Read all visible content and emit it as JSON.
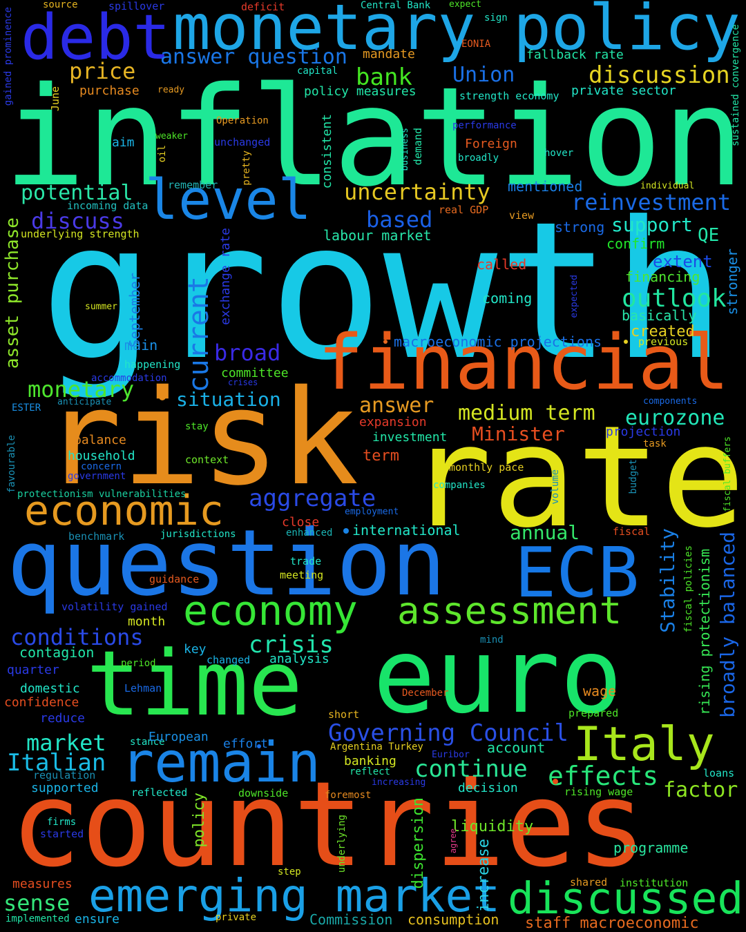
{
  "title": "",
  "background": "#000000",
  "words": [
    {
      "text": "inflation",
      "color": "#1ee896"
    },
    {
      "text": "growth",
      "color": "#17c9e6"
    },
    {
      "text": "rate",
      "color": "#e4e416"
    },
    {
      "text": "risk",
      "color": "#e68c1c"
    },
    {
      "text": "countries",
      "color": "#e64e18"
    },
    {
      "text": "question",
      "color": "#1b76e6"
    },
    {
      "text": "euro",
      "color": "#18e46a"
    },
    {
      "text": "financial",
      "color": "#e85a18"
    },
    {
      "text": "time",
      "color": "#28e650"
    },
    {
      "text": "monetary policy",
      "color": "#1ea6e6"
    },
    {
      "text": "debt",
      "color": "#2a2ae6"
    },
    {
      "text": "ECB",
      "color": "#1678e6"
    },
    {
      "text": "remain",
      "color": "#1a84e6"
    },
    {
      "text": "economic",
      "color": "#e69a20"
    },
    {
      "text": "level",
      "color": "#1a86e6"
    },
    {
      "text": "Italy",
      "color": "#a8e61c"
    },
    {
      "text": "emerging market",
      "color": "#1aa0e6"
    },
    {
      "text": "discussed",
      "color": "#18e45a"
    },
    {
      "text": "economy",
      "color": "#36e636"
    },
    {
      "text": "assessment",
      "color": "#5ee62c"
    },
    {
      "text": "Governing Council",
      "color": "#2a50e6"
    },
    {
      "text": "uncertainty",
      "color": "#e6c822"
    },
    {
      "text": "reinvestment",
      "color": "#1a6ae6"
    },
    {
      "text": "outlook",
      "color": "#22e6a0"
    },
    {
      "text": "aggregate",
      "color": "#2a4ae6"
    },
    {
      "text": "effects",
      "color": "#28e67a"
    },
    {
      "text": "continue",
      "color": "#2ae696"
    },
    {
      "text": "crisis",
      "color": "#22e6ae"
    },
    {
      "text": "conditions",
      "color": "#2a4ae6"
    },
    {
      "text": "Italian",
      "color": "#1abce6"
    },
    {
      "text": "discussion",
      "color": "#e6d422"
    },
    {
      "text": "price",
      "color": "#e6b424"
    },
    {
      "text": "bank",
      "color": "#44e622"
    },
    {
      "text": "Union",
      "color": "#1a70e6"
    },
    {
      "text": "answer question",
      "color": "#1a76e6"
    },
    {
      "text": "potential",
      "color": "#2ae6a8"
    },
    {
      "text": "discuss",
      "color": "#4a3ae6"
    },
    {
      "text": "based",
      "color": "#1a60e6"
    },
    {
      "text": "support",
      "color": "#22e6c8"
    },
    {
      "text": "broad",
      "color": "#3a2ae6"
    },
    {
      "text": "current",
      "color": "#1a78e6"
    },
    {
      "text": "monetary",
      "color": "#4ee62e"
    },
    {
      "text": "situation",
      "color": "#1ab0e6"
    },
    {
      "text": "answer",
      "color": "#e69a22"
    },
    {
      "text": "medium term",
      "color": "#d4e622"
    },
    {
      "text": "eurozone",
      "color": "#22e6b8"
    },
    {
      "text": "Minister",
      "color": "#e64e20"
    },
    {
      "text": "annual",
      "color": "#34e66a"
    },
    {
      "text": "market",
      "color": "#22e6c6"
    },
    {
      "text": "factor",
      "color": "#8ee622"
    },
    {
      "text": "asset purchase",
      "color": "#8ee62a"
    },
    {
      "text": "broadly balanced",
      "color": "#1a66e6"
    },
    {
      "text": "Stability",
      "color": "#1a80e6"
    },
    {
      "text": "rising protectionism",
      "color": "#36e654"
    },
    {
      "text": "sense",
      "color": "#34e67a"
    },
    {
      "text": "staff macroeconomic",
      "color": "#e66a20"
    },
    {
      "text": "Commission",
      "color": "#1aa8a8"
    },
    {
      "text": "consumption",
      "color": "#e6c020"
    },
    {
      "text": "liquidity",
      "color": "#6ee62a"
    },
    {
      "text": "programme",
      "color": "#2ae6a0"
    },
    {
      "text": "increase",
      "color": "#2ad4e6"
    },
    {
      "text": "dispersion",
      "color": "#3ee630"
    },
    {
      "text": "policy",
      "color": "#80e628"
    },
    {
      "text": "macroeconomic projections",
      "color": "#1a70e6"
    },
    {
      "text": "created",
      "color": "#e6d022"
    },
    {
      "text": "previous",
      "color": "#d4e622"
    },
    {
      "text": "extent",
      "color": "#1a4ae6"
    },
    {
      "text": "financing",
      "color": "#4ee630"
    },
    {
      "text": "basically",
      "color": "#28e6aa"
    },
    {
      "text": "strong",
      "color": "#1a6ae6"
    },
    {
      "text": "confirm",
      "color": "#22e62a"
    },
    {
      "text": "coming",
      "color": "#22e6c8"
    },
    {
      "text": "QE",
      "color": "#22e6aa"
    },
    {
      "text": "stronger",
      "color": "#1a90e6"
    },
    {
      "text": "mentioned",
      "color": "#1a80e6"
    },
    {
      "text": "labour market",
      "color": "#28e6aa"
    },
    {
      "text": "incoming data",
      "color": "#22c0c0"
    },
    {
      "text": "underlying strength",
      "color": "#d4e622"
    },
    {
      "text": "remember",
      "color": "#22b4b4"
    },
    {
      "text": "real GDP",
      "color": "#e66a20"
    },
    {
      "text": "view",
      "color": "#e69a22"
    },
    {
      "text": "called",
      "color": "#e63a2a"
    },
    {
      "text": "exchange rate",
      "color": "#2a3ae6"
    },
    {
      "text": "September",
      "color": "#1a80e6"
    },
    {
      "text": "main",
      "color": "#1a90e6"
    },
    {
      "text": "happening",
      "color": "#22e6c8"
    },
    {
      "text": "accommodation",
      "color": "#2a3ae6"
    },
    {
      "text": "committee",
      "color": "#4ee628"
    },
    {
      "text": "crises",
      "color": "#2a3ae6"
    },
    {
      "text": "anticipate",
      "color": "#1a90b4"
    },
    {
      "text": "ESTER",
      "color": "#1a90e6"
    },
    {
      "text": "stay",
      "color": "#4ee628"
    },
    {
      "text": "balance",
      "color": "#e68a20"
    },
    {
      "text": "household",
      "color": "#22e6c8"
    },
    {
      "text": "concern",
      "color": "#1a6ae6"
    },
    {
      "text": "government",
      "color": "#2a3ae6"
    },
    {
      "text": "favourable",
      "color": "#1a90b4"
    },
    {
      "text": "context",
      "color": "#6ee62a"
    },
    {
      "text": "protectionism vulnerabilities",
      "color": "#1ad0a0"
    },
    {
      "text": "expansion",
      "color": "#e63a2a"
    },
    {
      "text": "investment",
      "color": "#22e6a8"
    },
    {
      "text": "term",
      "color": "#e64e20"
    },
    {
      "text": "monthly pace",
      "color": "#e6d022"
    },
    {
      "text": "companies",
      "color": "#22e6c8"
    },
    {
      "text": "projection",
      "color": "#2a3ae6"
    },
    {
      "text": "task",
      "color": "#e69a22"
    },
    {
      "text": "components",
      "color": "#1a6ae6"
    },
    {
      "text": "volume",
      "color": "#1a90b4"
    },
    {
      "text": "budget",
      "color": "#1a90b4"
    },
    {
      "text": "fiscal buffers",
      "color": "#4ee628"
    },
    {
      "text": "employment",
      "color": "#1a6ae6"
    },
    {
      "text": "close",
      "color": "#e63a2a"
    },
    {
      "text": "enhanced",
      "color": "#1ab4b4"
    },
    {
      "text": "international",
      "color": "#22e6c8"
    },
    {
      "text": "benchmark",
      "color": "#1a90b4"
    },
    {
      "text": "jurisdictions",
      "color": "#22e6c8"
    },
    {
      "text": "fiscal",
      "color": "#e64e20"
    },
    {
      "text": "trade",
      "color": "#22e6c8"
    },
    {
      "text": "meeting",
      "color": "#d4e622"
    },
    {
      "text": "guidance",
      "color": "#e65a20"
    },
    {
      "text": "volatility gained",
      "color": "#2a3ae6"
    },
    {
      "text": "month",
      "color": "#d4e622"
    },
    {
      "text": "contagion",
      "color": "#22e6a8"
    },
    {
      "text": "key",
      "color": "#1ab4e6"
    },
    {
      "text": "changed",
      "color": "#1ab4e6"
    },
    {
      "text": "analysis",
      "color": "#22e6c8"
    },
    {
      "text": "period",
      "color": "#4ee628"
    },
    {
      "text": "quarter",
      "color": "#2a3ae6"
    },
    {
      "text": "domestic",
      "color": "#22e6c8"
    },
    {
      "text": "Lehman",
      "color": "#1a6ae6"
    },
    {
      "text": "confidence",
      "color": "#e64e20"
    },
    {
      "text": "reduce",
      "color": "#2a3ae6"
    },
    {
      "text": "December",
      "color": "#e65a20"
    },
    {
      "text": "wage",
      "color": "#e68a20"
    },
    {
      "text": "prepared",
      "color": "#4ee628"
    },
    {
      "text": "mind",
      "color": "#1a90b4"
    },
    {
      "text": "fiscal policies",
      "color": "#4ee628"
    },
    {
      "text": "short",
      "color": "#e6b420"
    },
    {
      "text": "stance",
      "color": "#22e6c8"
    },
    {
      "text": "European",
      "color": "#1a90e6"
    },
    {
      "text": "effort",
      "color": "#1a80e6"
    },
    {
      "text": "Argentina Turkey",
      "color": "#e6d022"
    },
    {
      "text": "account",
      "color": "#22e6a8"
    },
    {
      "text": "banking",
      "color": "#d4e622"
    },
    {
      "text": "Euribor",
      "color": "#2a3ae6"
    },
    {
      "text": "reflect",
      "color": "#22e6a8"
    },
    {
      "text": "increasing",
      "color": "#2a3ae6"
    },
    {
      "text": "regulation",
      "color": "#1a90b4"
    },
    {
      "text": "supported",
      "color": "#1ab4e6"
    },
    {
      "text": "reflected",
      "color": "#22e6c8"
    },
    {
      "text": "downside",
      "color": "#4ee628"
    },
    {
      "text": "foremost",
      "color": "#e68a20"
    },
    {
      "text": "decision",
      "color": "#22e6c8"
    },
    {
      "text": "rising wage",
      "color": "#4ee628"
    },
    {
      "text": "loans",
      "color": "#22e6c8"
    },
    {
      "text": "firms",
      "color": "#22e6c8"
    },
    {
      "text": "started",
      "color": "#2a3ae6"
    },
    {
      "text": "underlying",
      "color": "#6ee62a"
    },
    {
      "text": "agree",
      "color": "#e63a8a"
    },
    {
      "text": "step",
      "color": "#d4e622"
    },
    {
      "text": "measures",
      "color": "#e64e20"
    },
    {
      "text": "implemented",
      "color": "#22e6a8"
    },
    {
      "text": "ensure",
      "color": "#1ab4e6"
    },
    {
      "text": "private",
      "color": "#e6d022"
    },
    {
      "text": "shared",
      "color": "#e69a22"
    },
    {
      "text": "institution",
      "color": "#4ee628"
    },
    {
      "text": "source",
      "color": "#e6b420"
    },
    {
      "text": "spillover",
      "color": "#2a3ae6"
    },
    {
      "text": "deficit",
      "color": "#e63a2a"
    },
    {
      "text": "Central Bank",
      "color": "#22e6c8"
    },
    {
      "text": "expect",
      "color": "#4ee628"
    },
    {
      "text": "sign",
      "color": "#22e6c8"
    },
    {
      "text": "EONIA",
      "color": "#e65a20"
    },
    {
      "text": "mandate",
      "color": "#e69a22"
    },
    {
      "text": "fallback rate",
      "color": "#22e6a8"
    },
    {
      "text": "sustained convergence",
      "color": "#22e6a8"
    },
    {
      "text": "gained prominence",
      "color": "#2a3ae6"
    },
    {
      "text": "capital",
      "color": "#22e6c8"
    },
    {
      "text": "policy measures",
      "color": "#22e6a8"
    },
    {
      "text": "strength economy",
      "color": "#22e6c8"
    },
    {
      "text": "private sector",
      "color": "#22e6c8"
    },
    {
      "text": "purchase",
      "color": "#e68a20"
    },
    {
      "text": "ready",
      "color": "#e69a22"
    },
    {
      "text": "June",
      "color": "#e6d022"
    },
    {
      "text": "Operation",
      "color": "#e69a22"
    },
    {
      "text": "aim",
      "color": "#1ab4e6"
    },
    {
      "text": "weaker",
      "color": "#4ee628"
    },
    {
      "text": "oil",
      "color": "#e6d022"
    },
    {
      "text": "unchanged",
      "color": "#2a3ae6"
    },
    {
      "text": "pretty",
      "color": "#e6b420"
    },
    {
      "text": "consistent",
      "color": "#22e6a8"
    },
    {
      "text": "business",
      "color": "#22e6c8"
    },
    {
      "text": "demand",
      "color": "#22e6a8"
    },
    {
      "text": "performance",
      "color": "#2a3ae6"
    },
    {
      "text": "Foreign",
      "color": "#e65a20"
    },
    {
      "text": "broadly",
      "color": "#22e6c8"
    },
    {
      "text": "hover",
      "color": "#22e6c8"
    },
    {
      "text": "individual",
      "color": "#d4e622"
    },
    {
      "text": "expected",
      "color": "#2a3ae6"
    },
    {
      "text": "summer",
      "color": "#d4e622"
    }
  ]
}
